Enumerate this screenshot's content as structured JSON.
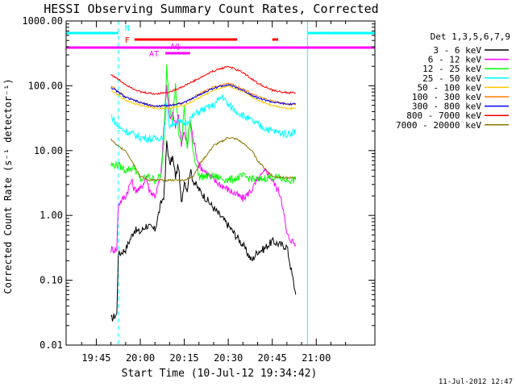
{
  "chart_data": {
    "type": "line",
    "title": "HESSI Observing Summary Count Rates, Corrected",
    "xlabel": "Start Time (10-Jul-12 19:34:42)",
    "ylabel": "Corrected Count Rate (s⁻¹ detector⁻¹)",
    "y_scale": "log",
    "ylim": [
      0.01,
      1000
    ],
    "xlim_minutes": [
      34.7,
      140
    ],
    "x_ticks": [
      {
        "t": 45,
        "label": "19:45"
      },
      {
        "t": 60,
        "label": "20:00"
      },
      {
        "t": 75,
        "label": "20:15"
      },
      {
        "t": 90,
        "label": "20:30"
      },
      {
        "t": 105,
        "label": "20:45"
      },
      {
        "t": 120,
        "label": "21:00"
      }
    ],
    "y_ticks": [
      {
        "v": 1000,
        "label": "1000.00"
      },
      {
        "v": 100,
        "label": "100.00"
      },
      {
        "v": 10,
        "label": "10.00"
      },
      {
        "v": 1,
        "label": "1.00"
      },
      {
        "v": 0.1,
        "label": "0.10"
      },
      {
        "v": 0.01,
        "label": "0.01"
      }
    ],
    "legend_title": "Det 1,3,5,6,7,9",
    "legend_position": "right",
    "series": [
      {
        "name": "3 - 6 keV",
        "color": "#000000",
        "x": [
          50,
          52,
          52.5,
          55,
          58,
          60,
          62,
          65,
          67,
          68,
          68.5,
          69,
          70,
          71,
          72,
          73,
          74,
          75,
          76,
          77,
          78,
          80,
          85,
          90,
          95,
          98,
          100,
          102,
          105,
          108,
          110,
          113
        ],
        "y": [
          0.025,
          0.03,
          0.25,
          0.3,
          0.6,
          0.55,
          0.7,
          0.6,
          1.5,
          2.0,
          4.0,
          14,
          6,
          8,
          4,
          6,
          1.5,
          3.5,
          2.5,
          5,
          3.5,
          2.5,
          1.3,
          0.7,
          0.35,
          0.2,
          0.28,
          0.3,
          0.4,
          0.35,
          0.33,
          0.06
        ]
      },
      {
        "name": "6 - 12 keV",
        "color": "#ff00ff",
        "x": [
          50,
          52,
          52.5,
          55,
          57,
          58,
          60,
          62,
          63,
          65,
          67,
          68,
          69,
          70,
          71,
          72,
          73,
          74,
          75,
          76,
          77,
          78,
          80,
          85,
          90,
          95,
          98,
          100,
          103,
          105,
          108,
          110,
          113
        ],
        "y": [
          0.3,
          0.3,
          1.5,
          2.0,
          3.5,
          2.5,
          2.5,
          4.0,
          2.5,
          2.0,
          4,
          20,
          100,
          30,
          40,
          25,
          35,
          12,
          20,
          12,
          30,
          15,
          6,
          3.5,
          2.5,
          1.8,
          2.5,
          3.5,
          5,
          3.5,
          2.0,
          0.5,
          0.35
        ]
      },
      {
        "name": "12 - 25 keV",
        "color": "#00ff00",
        "x": [
          50,
          52.5,
          55,
          58,
          60,
          63,
          65,
          67,
          68,
          69,
          70,
          71,
          72,
          73,
          74,
          75,
          76,
          77,
          78,
          80,
          85,
          90,
          95,
          100,
          105,
          110,
          113
        ],
        "y": [
          6,
          6,
          5,
          5.5,
          3.5,
          4,
          3.5,
          4,
          12,
          200,
          50,
          30,
          100,
          20,
          12,
          50,
          10,
          30,
          10,
          4,
          4,
          3.5,
          4,
          3.5,
          4,
          3.5,
          3.5
        ]
      },
      {
        "name": "25 - 50 keV",
        "color": "#00ffff",
        "x": [
          50,
          52.5,
          55,
          60,
          65,
          68,
          69,
          70,
          72,
          75,
          80,
          85,
          88,
          90,
          93,
          95,
          100,
          105,
          110,
          113
        ],
        "y": [
          35,
          23,
          20,
          16,
          15,
          17,
          50,
          24,
          28,
          26,
          40,
          50,
          70,
          50,
          40,
          35,
          25,
          20,
          18,
          20
        ]
      },
      {
        "name": "50 - 100 keV",
        "color": "#ffc800",
        "x": [
          50,
          55,
          60,
          65,
          70,
          75,
          80,
          85,
          90,
          95,
          100,
          105,
          110,
          113
        ],
        "y": [
          85,
          60,
          50,
          45,
          45,
          50,
          65,
          85,
          100,
          80,
          60,
          50,
          45,
          45
        ]
      },
      {
        "name": "100 - 300 keV",
        "color": "#ff7f00",
        "x": [
          50,
          55,
          60,
          65,
          70,
          75,
          80,
          85,
          90,
          95,
          100,
          105,
          110,
          113
        ],
        "y": [
          100,
          68,
          55,
          48,
          50,
          55,
          75,
          95,
          110,
          90,
          68,
          58,
          52,
          52
        ]
      },
      {
        "name": "300 - 800 keV",
        "color": "#0000ff",
        "x": [
          50,
          55,
          60,
          65,
          70,
          75,
          80,
          85,
          90,
          95,
          100,
          105,
          110,
          113
        ],
        "y": [
          95,
          66,
          55,
          48,
          50,
          55,
          72,
          92,
          105,
          85,
          65,
          56,
          52,
          52
        ]
      },
      {
        "name": "800 - 7000 keV",
        "color": "#ff0000",
        "x": [
          50,
          55,
          60,
          65,
          70,
          75,
          80,
          85,
          90,
          95,
          100,
          105,
          110,
          113
        ],
        "y": [
          150,
          105,
          80,
          75,
          80,
          100,
          130,
          170,
          200,
          160,
          110,
          85,
          78,
          78
        ]
      },
      {
        "name": "7000 - 20000 keV",
        "color": "#8b7500",
        "x": [
          50,
          52,
          55,
          58,
          60,
          63,
          65,
          68,
          70,
          73,
          75,
          78,
          80,
          83,
          85,
          88,
          90,
          93,
          95,
          98,
          100,
          103,
          105,
          110,
          113
        ],
        "y": [
          15,
          12,
          10,
          6,
          4,
          3.5,
          3.5,
          3.5,
          3.5,
          3.5,
          3.5,
          4,
          6,
          9,
          12,
          14,
          16,
          15,
          13,
          10,
          7,
          5,
          4,
          3.8,
          3.8
        ]
      }
    ],
    "flag_bars": [
      {
        "label": "N",
        "color": "#00ffff",
        "segments": [
          [
            34.7,
            52.5
          ],
          [
            117,
            140
          ]
        ]
      },
      {
        "label": "F",
        "color": "#ff0000",
        "segments": [
          [
            58,
            93
          ],
          [
            105,
            107
          ]
        ]
      },
      {
        "label": "",
        "color": "#ff00ff",
        "segments": [
          [
            34.7,
            140
          ]
        ]
      },
      {
        "label": "AQ",
        "color": "#ff00ff",
        "segments": [
          [
            68.5,
            77
          ]
        ]
      },
      {
        "label": "AT",
        "color": "#ff00ff",
        "segments": [
          [
            68.5,
            77
          ]
        ]
      }
    ],
    "vertical_lines": [
      {
        "t": 34.7,
        "color": "#00ffff",
        "style": "solid"
      },
      {
        "t": 52.5,
        "color": "#00ffff",
        "style": "dashed"
      },
      {
        "t": 117,
        "color": "#00ffff",
        "style": "solid"
      },
      {
        "t": 140,
        "color": "#00ffff",
        "style": "dashed"
      }
    ],
    "footer_timestamp": "11-Jul-2012 12:47"
  }
}
